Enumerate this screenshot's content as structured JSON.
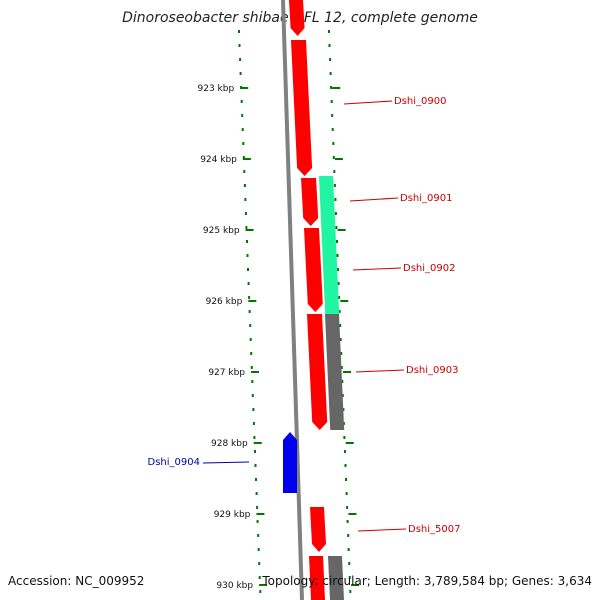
{
  "title": "Dinoroseobacter shibae DFL 12, complete genome",
  "footer": {
    "accession": "Accession: NC_009952",
    "summary": "Topology: circular; Length: 3,789,584 bp; Genes: 3,634"
  },
  "colors": {
    "forward_gene": "#ff0000",
    "rna_gene": "#21f5a1",
    "reverse_gene": "#0000ee",
    "gray_feature": "#666666",
    "tick": "#007700",
    "backbone": "#808080",
    "label_red": "#cc0000",
    "label_blue": "#0000aa"
  },
  "ticks": [
    {
      "label": "923 kbp",
      "kbp": 923
    },
    {
      "label": "924 kbp",
      "kbp": 924
    },
    {
      "label": "925 kbp",
      "kbp": 925
    },
    {
      "label": "926 kbp",
      "kbp": 926
    },
    {
      "label": "927 kbp",
      "kbp": 927
    },
    {
      "label": "928 kbp",
      "kbp": 928
    },
    {
      "label": "929 kbp",
      "kbp": 929
    },
    {
      "label": "930 kbp",
      "kbp": 930
    }
  ],
  "genes": [
    {
      "name": "Dshi_0900",
      "label_side": "right"
    },
    {
      "name": "Dshi_0901",
      "label_side": "right"
    },
    {
      "name": "Dshi_0902",
      "label_side": "right"
    },
    {
      "name": "Dshi_0903",
      "label_side": "right"
    },
    {
      "name": "Dshi_0904",
      "label_side": "left"
    },
    {
      "name": "Dshi_5007",
      "label_side": "right"
    }
  ]
}
